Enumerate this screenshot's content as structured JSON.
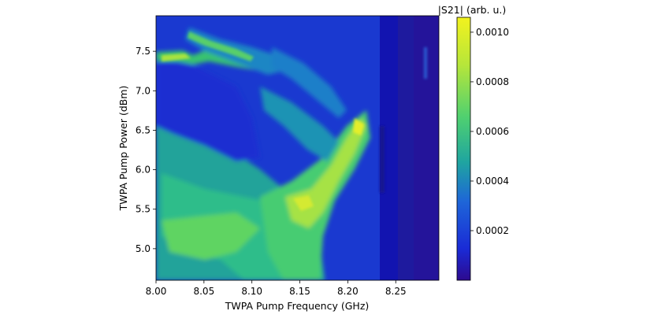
{
  "chart_data": {
    "type": "heatmap",
    "title": "",
    "xlabel": "TWPA Pump Frequency (GHz)",
    "ylabel": "TWPA Pump Power (dBm)",
    "xlim": [
      8.0,
      8.295
    ],
    "ylim": [
      4.6,
      7.95
    ],
    "x_ticks": [
      "8.00",
      "8.05",
      "8.10",
      "8.15",
      "8.20",
      "8.25"
    ],
    "y_ticks": [
      "5.0",
      "5.5",
      "6.0",
      "6.5",
      "7.0",
      "7.5"
    ],
    "grid": false,
    "colorbar": {
      "label": "|S21| (arb. u.)",
      "range": [
        0.0,
        0.00106
      ],
      "ticks": [
        "0.0002",
        "0.0004",
        "0.0006",
        "0.0008",
        "0.0010"
      ],
      "colormap": [
        "#2d0a8f",
        "#1a2bd6",
        "#1e66d8",
        "#1fa5a0",
        "#4fd070",
        "#b7e63a",
        "#f2f21e"
      ]
    }
  }
}
